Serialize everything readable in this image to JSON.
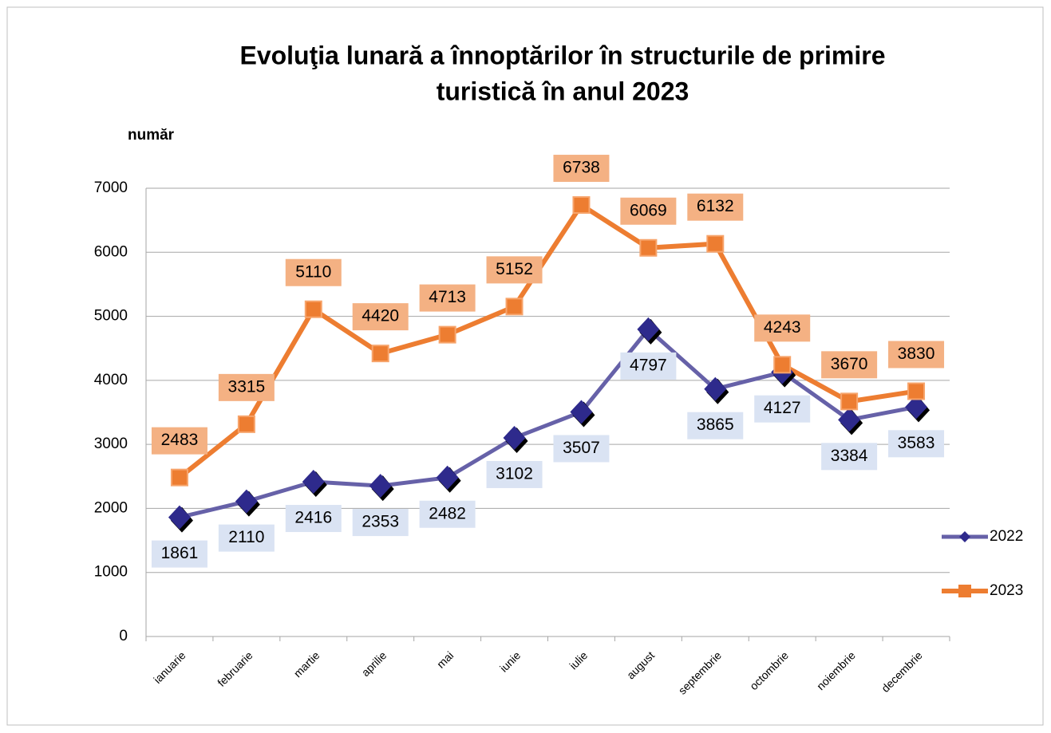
{
  "chart_data": {
    "type": "line",
    "title": [
      "Evoluţia lunară a înnoptărilor în structurile de primire",
      "turistică în anul 2023"
    ],
    "y_axis_label": "număr",
    "categories": [
      "ianuarie",
      "februarie",
      "martie",
      "aprilie",
      "mai",
      "iunie",
      "iulie",
      "august",
      "septembrie",
      "octombrie",
      "noiembrie",
      "decembrie"
    ],
    "series": [
      {
        "name": "2022",
        "color": "#6661a8",
        "marker_color": "#2e2a8c",
        "label_fill": "#dae3f3",
        "values": [
          1861,
          2110,
          2416,
          2353,
          2482,
          3102,
          3507,
          4797,
          3865,
          4127,
          3384,
          3583
        ]
      },
      {
        "name": "2023",
        "color": "#ed7d31",
        "marker_color": "#ed7d31",
        "label_fill": "#f4b183",
        "values": [
          2483,
          3315,
          5110,
          4420,
          4713,
          5152,
          6738,
          6069,
          6132,
          4243,
          3670,
          3830
        ]
      }
    ],
    "ylim": [
      0,
      7000
    ],
    "yticks": [
      0,
      1000,
      2000,
      3000,
      4000,
      5000,
      6000,
      7000
    ],
    "grid": true,
    "legend": "right"
  }
}
